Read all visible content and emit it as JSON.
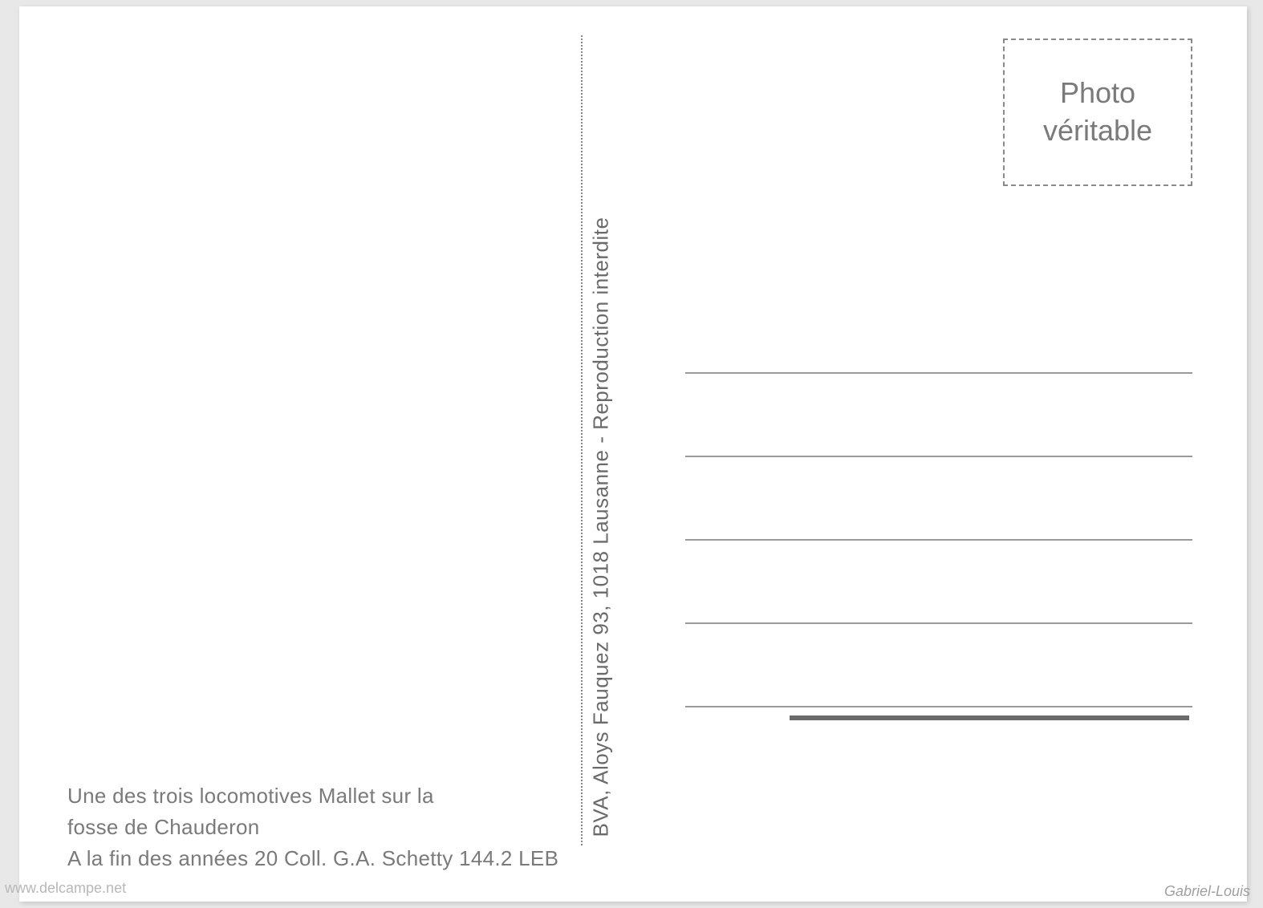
{
  "postcard": {
    "stamp": {
      "line1": "Photo",
      "line2": "véritable"
    },
    "publisher_vertical": "BVA, Aloys Fauquez 93, 1018 Lausanne - Reproduction interdite",
    "caption": {
      "line1": "Une des trois locomotives Mallet sur la",
      "line2": "fosse de Chauderon",
      "line3": "A la fin des années 20   Coll. G.A. Schetty   144.2 LEB"
    }
  },
  "watermark": "www.delcampe.net",
  "attribution": "Gabriel-Louis",
  "colors": {
    "background": "#e8e8e8",
    "card": "#ffffff",
    "text_grey": "#7a7a7a",
    "line_grey": "#9a9a9a",
    "dash_grey": "#8a8a8a"
  }
}
